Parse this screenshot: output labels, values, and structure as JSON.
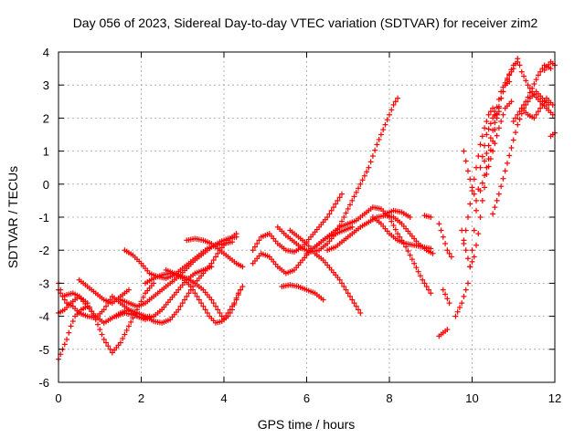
{
  "chart_data": {
    "type": "scatter",
    "title": "Day 056 of 2023, Sidereal Day-to-day VTEC variation (SDTVAR) for receiver zim2",
    "xlabel": "GPS time / hours",
    "ylabel": "SDTVAR / TECUs",
    "xlim": [
      0,
      12
    ],
    "ylim": [
      -6,
      4
    ],
    "xticks": [
      "0",
      "2",
      "4",
      "6",
      "8",
      "10",
      "12"
    ],
    "yticks": [
      "4",
      "3",
      "2",
      "1",
      "0",
      "-1",
      "-2",
      "-3",
      "-4",
      "-5",
      "-6"
    ],
    "grid": true,
    "marker": "plus",
    "color": "#ff0000",
    "tracks": [
      [
        [
          0.0,
          -5.3
        ],
        [
          0.1,
          -5.0
        ],
        [
          0.2,
          -4.7
        ],
        [
          0.3,
          -4.3
        ],
        [
          0.4,
          -4.0
        ],
        [
          0.55,
          -3.8
        ],
        [
          0.7,
          -3.7
        ]
      ],
      [
        [
          0.0,
          -3.9
        ],
        [
          0.15,
          -3.8
        ],
        [
          0.3,
          -3.6
        ],
        [
          0.5,
          -3.4
        ],
        [
          0.7,
          -3.6
        ],
        [
          0.9,
          -4.1
        ],
        [
          1.1,
          -4.7
        ],
        [
          1.3,
          -5.1
        ],
        [
          1.5,
          -4.8
        ],
        [
          1.7,
          -4.3
        ],
        [
          1.9,
          -3.8
        ],
        [
          2.1,
          -3.3
        ],
        [
          2.3,
          -3.0
        ]
      ],
      [
        [
          0.0,
          -3.0
        ],
        [
          0.1,
          -3.4
        ],
        [
          0.2,
          -3.6
        ],
        [
          0.35,
          -3.7
        ],
        [
          0.5,
          -3.9
        ],
        [
          0.7,
          -4.0
        ],
        [
          0.9,
          -4.05
        ],
        [
          1.1,
          -3.8
        ],
        [
          1.3,
          -3.4
        ],
        [
          1.5,
          -3.6
        ],
        [
          1.7,
          -3.8
        ],
        [
          1.9,
          -4.0
        ],
        [
          2.1,
          -4.1
        ],
        [
          2.3,
          -4.0
        ],
        [
          2.5,
          -3.8
        ],
        [
          2.7,
          -3.5
        ],
        [
          2.9,
          -3.2
        ],
        [
          3.1,
          -2.9
        ],
        [
          3.3,
          -2.7
        ],
        [
          3.5,
          -2.6
        ],
        [
          3.7,
          -2.5
        ]
      ],
      [
        [
          0.0,
          -3.2
        ],
        [
          0.1,
          -3.4
        ],
        [
          0.2,
          -3.35
        ],
        [
          0.35,
          -3.3
        ],
        [
          0.5,
          -3.4
        ],
        [
          0.7,
          -3.7
        ],
        [
          0.9,
          -4.0
        ],
        [
          1.1,
          -4.2
        ],
        [
          1.3,
          -4.05
        ],
        [
          1.5,
          -3.9
        ],
        [
          1.7,
          -3.8
        ],
        [
          1.9,
          -3.9
        ],
        [
          2.1,
          -4.0
        ],
        [
          2.3,
          -4.15
        ],
        [
          2.5,
          -4.2
        ],
        [
          2.7,
          -4.1
        ],
        [
          2.9,
          -3.8
        ],
        [
          3.1,
          -3.4
        ],
        [
          3.3,
          -3.0
        ],
        [
          3.5,
          -2.7
        ],
        [
          3.7,
          -2.4
        ],
        [
          3.9,
          -2.0
        ],
        [
          4.1,
          -1.7
        ],
        [
          4.3,
          -1.5
        ]
      ],
      [
        [
          0.5,
          -2.9
        ],
        [
          0.7,
          -3.1
        ],
        [
          0.9,
          -3.3
        ],
        [
          1.1,
          -3.5
        ],
        [
          1.3,
          -3.6
        ],
        [
          1.5,
          -3.4
        ],
        [
          1.7,
          -3.2
        ]
      ],
      [
        [
          1.4,
          -4.0
        ],
        [
          1.6,
          -3.9
        ],
        [
          1.8,
          -3.95
        ],
        [
          2.0,
          -4.05
        ],
        [
          2.2,
          -4.0
        ]
      ],
      [
        [
          1.5,
          -3.5
        ],
        [
          1.7,
          -3.6
        ],
        [
          1.9,
          -3.7
        ],
        [
          2.1,
          -3.6
        ],
        [
          2.3,
          -3.4
        ],
        [
          2.5,
          -3.2
        ],
        [
          2.7,
          -3.0
        ],
        [
          2.9,
          -2.8
        ],
        [
          3.1,
          -2.55
        ],
        [
          3.3,
          -2.3
        ],
        [
          3.5,
          -2.1
        ],
        [
          3.7,
          -1.9
        ],
        [
          3.9,
          -1.75
        ],
        [
          4.1,
          -1.65
        ],
        [
          4.3,
          -1.6
        ]
      ],
      [
        [
          1.6,
          -2.0
        ],
        [
          1.8,
          -2.15
        ],
        [
          2.0,
          -2.4
        ],
        [
          2.2,
          -2.7
        ],
        [
          2.4,
          -2.8
        ],
        [
          2.6,
          -2.85
        ],
        [
          2.8,
          -2.75
        ],
        [
          3.0,
          -2.55
        ],
        [
          3.2,
          -2.35
        ],
        [
          3.4,
          -2.15
        ],
        [
          3.6,
          -1.95
        ],
        [
          3.8,
          -1.85
        ],
        [
          4.0,
          -1.8
        ],
        [
          4.2,
          -1.75
        ]
      ],
      [
        [
          2.1,
          -3.0
        ],
        [
          2.3,
          -2.85
        ],
        [
          2.5,
          -2.75
        ],
        [
          2.7,
          -2.7
        ],
        [
          2.9,
          -2.75
        ],
        [
          3.1,
          -2.85
        ],
        [
          3.3,
          -3.0
        ],
        [
          3.5,
          -3.2
        ],
        [
          3.7,
          -3.5
        ],
        [
          3.9,
          -3.9
        ],
        [
          4.0,
          -4.1
        ],
        [
          4.1,
          -4.0
        ],
        [
          4.2,
          -3.8
        ],
        [
          4.3,
          -3.5
        ],
        [
          4.4,
          -3.2
        ]
      ],
      [
        [
          2.6,
          -2.6
        ],
        [
          2.8,
          -2.7
        ],
        [
          3.0,
          -2.85
        ],
        [
          3.2,
          -3.1
        ],
        [
          3.35,
          -3.4
        ],
        [
          3.5,
          -3.7
        ],
        [
          3.65,
          -4.0
        ],
        [
          3.8,
          -4.2
        ],
        [
          3.95,
          -4.15
        ],
        [
          4.1,
          -3.9
        ],
        [
          4.25,
          -3.6
        ],
        [
          4.35,
          -3.3
        ],
        [
          4.45,
          -3.1
        ]
      ],
      [
        [
          3.1,
          -1.7
        ],
        [
          3.3,
          -1.65
        ],
        [
          3.5,
          -1.7
        ],
        [
          3.7,
          -1.8
        ],
        [
          3.9,
          -2.0
        ],
        [
          4.1,
          -2.2
        ],
        [
          4.3,
          -2.4
        ],
        [
          4.45,
          -2.5
        ]
      ],
      [
        [
          4.7,
          -2.0
        ],
        [
          4.9,
          -1.6
        ],
        [
          5.1,
          -1.5
        ],
        [
          5.3,
          -1.8
        ],
        [
          5.5,
          -2.0
        ],
        [
          5.7,
          -2.05
        ],
        [
          5.9,
          -1.9
        ],
        [
          6.1,
          -1.6
        ],
        [
          6.3,
          -1.3
        ],
        [
          6.5,
          -1.0
        ],
        [
          6.7,
          -0.6
        ],
        [
          6.85,
          -0.3
        ]
      ],
      [
        [
          4.7,
          -2.4
        ],
        [
          4.9,
          -2.1
        ],
        [
          5.1,
          -2.2
        ],
        [
          5.3,
          -2.5
        ],
        [
          5.5,
          -2.7
        ],
        [
          5.7,
          -2.6
        ],
        [
          5.9,
          -2.3
        ],
        [
          6.1,
          -2.0
        ],
        [
          6.3,
          -1.8
        ],
        [
          6.5,
          -1.6
        ],
        [
          6.7,
          -1.5
        ],
        [
          6.9,
          -1.4
        ],
        [
          7.1,
          -1.3
        ]
      ],
      [
        [
          5.6,
          -1.4
        ],
        [
          5.8,
          -1.6
        ],
        [
          6.0,
          -1.8
        ],
        [
          6.2,
          -2.1
        ],
        [
          6.4,
          -2.3
        ],
        [
          6.6,
          -2.6
        ],
        [
          6.8,
          -2.9
        ],
        [
          7.0,
          -3.3
        ],
        [
          7.15,
          -3.6
        ],
        [
          7.3,
          -3.9
        ]
      ],
      [
        [
          5.4,
          -3.1
        ],
        [
          5.6,
          -3.05
        ],
        [
          5.8,
          -3.1
        ],
        [
          6.0,
          -3.2
        ],
        [
          6.2,
          -3.3
        ],
        [
          6.4,
          -3.5
        ]
      ],
      [
        [
          5.3,
          -1.3
        ],
        [
          5.5,
          -1.55
        ],
        [
          5.7,
          -1.75
        ],
        [
          5.9,
          -1.95
        ],
        [
          6.1,
          -2.05
        ],
        [
          6.3,
          -2.0
        ],
        [
          6.5,
          -1.8
        ],
        [
          6.7,
          -1.5
        ],
        [
          6.9,
          -1.0
        ],
        [
          7.1,
          -0.5
        ],
        [
          7.3,
          0.0
        ],
        [
          7.5,
          0.5
        ],
        [
          7.7,
          1.2
        ],
        [
          7.9,
          1.8
        ],
        [
          8.0,
          2.1
        ],
        [
          8.1,
          2.4
        ],
        [
          8.2,
          2.6
        ]
      ],
      [
        [
          6.0,
          -2.1
        ],
        [
          6.2,
          -1.9
        ],
        [
          6.4,
          -1.7
        ],
        [
          6.6,
          -1.5
        ],
        [
          6.8,
          -1.3
        ],
        [
          7.0,
          -1.2
        ],
        [
          7.2,
          -1.1
        ],
        [
          7.4,
          -0.9
        ],
        [
          7.6,
          -0.7
        ],
        [
          7.8,
          -0.75
        ],
        [
          8.0,
          -1.0
        ],
        [
          8.2,
          -1.5
        ],
        [
          8.4,
          -1.9
        ],
        [
          8.6,
          -2.4
        ],
        [
          8.8,
          -2.9
        ],
        [
          9.0,
          -3.3
        ]
      ],
      [
        [
          6.5,
          -2.0
        ],
        [
          6.7,
          -1.9
        ],
        [
          6.9,
          -1.7
        ],
        [
          7.1,
          -1.5
        ],
        [
          7.3,
          -1.3
        ],
        [
          7.5,
          -1.15
        ],
        [
          7.7,
          -1.0
        ],
        [
          7.9,
          -0.95
        ],
        [
          8.1,
          -1.0
        ],
        [
          8.3,
          -1.2
        ],
        [
          8.5,
          -1.5
        ],
        [
          8.7,
          -1.8
        ],
        [
          8.9,
          -2.0
        ],
        [
          9.05,
          -2.1
        ]
      ],
      [
        [
          7.6,
          -1.0
        ],
        [
          7.8,
          -1.2
        ],
        [
          8.0,
          -1.5
        ],
        [
          8.2,
          -1.7
        ],
        [
          8.4,
          -1.8
        ],
        [
          8.6,
          -1.85
        ],
        [
          8.8,
          -1.9
        ],
        [
          9.0,
          -1.95
        ]
      ],
      [
        [
          7.9,
          -0.9
        ],
        [
          8.1,
          -0.8
        ],
        [
          8.3,
          -0.85
        ],
        [
          8.5,
          -1.0
        ]
      ],
      [
        [
          8.85,
          -0.95
        ],
        [
          9.0,
          -1.0
        ]
      ],
      [
        [
          9.3,
          -3.2
        ],
        [
          9.45,
          -3.6
        ]
      ],
      [
        [
          9.2,
          -4.6
        ],
        [
          9.3,
          -4.5
        ],
        [
          9.4,
          -4.4
        ]
      ],
      [
        [
          9.6,
          -4.0
        ],
        [
          9.75,
          -3.6
        ],
        [
          9.9,
          -3.0
        ],
        [
          10.0,
          -2.0
        ],
        [
          10.1,
          -0.8
        ],
        [
          10.2,
          0.5
        ],
        [
          10.35,
          1.5
        ],
        [
          10.5,
          2.0
        ],
        [
          10.65,
          2.2
        ]
      ],
      [
        [
          9.2,
          -1.2
        ],
        [
          9.3,
          -1.6
        ],
        [
          9.4,
          -2.0
        ],
        [
          9.5,
          -2.2
        ]
      ],
      [
        [
          9.75,
          -1.4
        ],
        [
          9.85,
          -2.0
        ],
        [
          9.95,
          -2.5
        ],
        [
          10.05,
          -2.2
        ],
        [
          10.15,
          -1.5
        ],
        [
          10.25,
          -0.5
        ],
        [
          10.35,
          0.3
        ],
        [
          10.5,
          1.0
        ],
        [
          10.65,
          1.7
        ],
        [
          10.8,
          2.3
        ],
        [
          10.95,
          2.5
        ]
      ],
      [
        [
          9.8,
          -1.8
        ],
        [
          9.9,
          -1.0
        ],
        [
          10.0,
          -0.2
        ],
        [
          10.1,
          0.5
        ],
        [
          10.2,
          1.2
        ],
        [
          10.3,
          1.7
        ],
        [
          10.4,
          2.1
        ],
        [
          10.5,
          2.3
        ],
        [
          10.6,
          2.1
        ]
      ],
      [
        [
          9.8,
          1.0
        ],
        [
          9.9,
          0.4
        ],
        [
          10.0,
          -0.1
        ],
        [
          10.1,
          -0.5
        ]
      ],
      [
        [
          10.2,
          -0.2
        ],
        [
          10.35,
          0.5
        ],
        [
          10.5,
          1.3
        ],
        [
          10.6,
          2.0
        ],
        [
          10.7,
          2.6
        ],
        [
          10.8,
          3.0
        ],
        [
          10.9,
          3.1
        ]
      ],
      [
        [
          10.3,
          0.7
        ],
        [
          10.45,
          1.4
        ],
        [
          10.6,
          2.1
        ],
        [
          10.7,
          2.6
        ],
        [
          10.8,
          3.0
        ],
        [
          10.9,
          3.3
        ],
        [
          11.0,
          3.5
        ],
        [
          11.1,
          3.8
        ],
        [
          11.2,
          3.4
        ],
        [
          11.35,
          3.0
        ],
        [
          11.5,
          2.7
        ],
        [
          11.65,
          2.5
        ],
        [
          11.8,
          2.3
        ],
        [
          11.95,
          2.1
        ]
      ],
      [
        [
          10.5,
          -0.9
        ],
        [
          10.65,
          -0.3
        ],
        [
          10.8,
          0.4
        ],
        [
          10.95,
          1.1
        ],
        [
          11.1,
          1.8
        ],
        [
          11.25,
          2.3
        ],
        [
          11.4,
          2.6
        ],
        [
          11.55,
          2.8
        ],
        [
          11.7,
          2.6
        ],
        [
          11.85,
          2.4
        ]
      ],
      [
        [
          10.55,
          2.1
        ],
        [
          10.7,
          2.8
        ],
        [
          10.85,
          3.2
        ],
        [
          11.0,
          3.6
        ],
        [
          11.1,
          3.7
        ]
      ],
      [
        [
          11.0,
          1.9
        ],
        [
          11.15,
          2.2
        ],
        [
          11.3,
          2.5
        ],
        [
          11.45,
          2.9
        ],
        [
          11.6,
          3.3
        ],
        [
          11.75,
          3.6
        ],
        [
          11.9,
          3.5
        ]
      ],
      [
        [
          11.2,
          2.3
        ],
        [
          11.35,
          2.1
        ],
        [
          11.5,
          2.0
        ],
        [
          11.65,
          2.3
        ],
        [
          11.8,
          2.6
        ],
        [
          11.95,
          2.4
        ]
      ],
      [
        [
          11.9,
          1.45
        ],
        [
          12.0,
          1.55
        ]
      ],
      [
        [
          11.75,
          3.45
        ],
        [
          11.9,
          3.7
        ],
        [
          12.0,
          3.6
        ]
      ]
    ]
  }
}
